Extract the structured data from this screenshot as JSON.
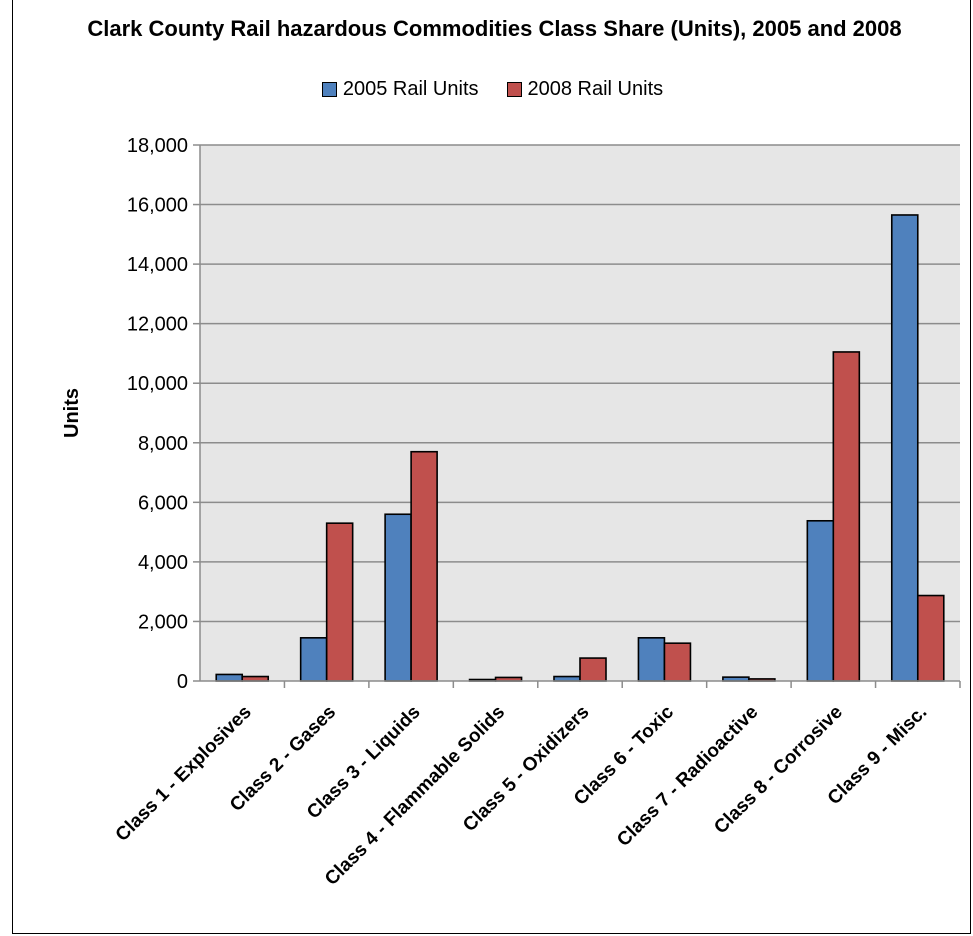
{
  "chart_data": {
    "type": "bar",
    "title": "Clark County Rail hazardous Commodities Class Share (Units), 2005 and 2008",
    "xlabel": "",
    "ylabel": "Units",
    "ylim": [
      0,
      18000
    ],
    "yticks": [
      0,
      2000,
      4000,
      6000,
      8000,
      10000,
      12000,
      14000,
      16000,
      18000
    ],
    "ytick_labels": [
      "0",
      "2,000",
      "4,000",
      "6,000",
      "8,000",
      "10,000",
      "12,000",
      "14,000",
      "16,000",
      "18,000"
    ],
    "grid": true,
    "legend_position": "top-center",
    "categories": [
      "Class 1 - Explosives",
      "Class 2 - Gases",
      "Class 3 - Liquids",
      "Class 4 - Flammable Solids",
      "Class 5 - Oxidizers",
      "Class 6 - Toxic",
      "Class 7 - Radioactive",
      "Class 8 - Corrosive",
      "Class 9 - Misc."
    ],
    "series": [
      {
        "name": "2005 Rail Units",
        "color": "#4F81BD",
        "values": [
          220,
          1450,
          5600,
          50,
          150,
          1450,
          130,
          5380,
          15650
        ]
      },
      {
        "name": "2008 Rail Units",
        "color": "#C0504D",
        "values": [
          150,
          5300,
          7700,
          120,
          770,
          1270,
          70,
          11050,
          2870
        ]
      }
    ]
  }
}
